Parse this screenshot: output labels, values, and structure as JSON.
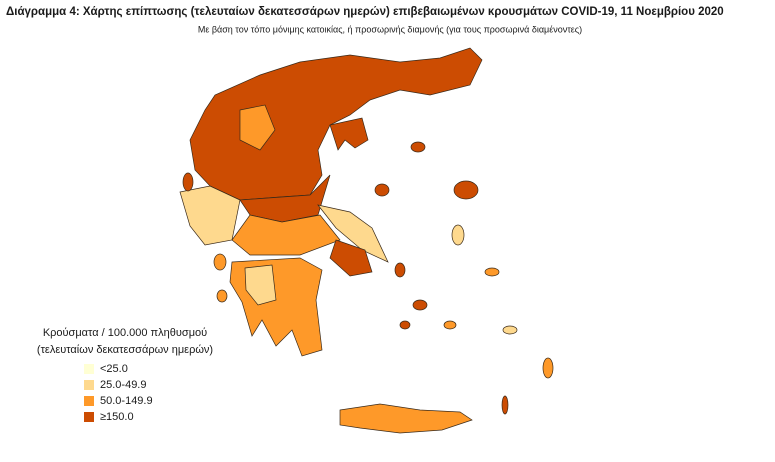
{
  "header": {
    "title": "Διάγραμμα 4: Χάρτης επίπτωσης (τελευταίων δεκατεσσάρων ημερών) επιβεβαιωμένων κρουσμάτων COVID-19, 11 Νοεμβρίου 2020",
    "subtitle": "Με βάση τον τόπο μόνιμης κατοικίας, ή προσωρινής διαμονής (για τους προσωρινά διαμένοντες)"
  },
  "legend": {
    "title": [
      "Κρούσματα / 100.000 πληθυσμού",
      "(τελευταίων δεκατεσσάρων ημερών)"
    ],
    "items": [
      {
        "label": "<25.0",
        "color": "#ffffd4"
      },
      {
        "label": "25.0-49.9",
        "color": "#fed98e"
      },
      {
        "label": "50.0-149.9",
        "color": "#fe9929"
      },
      {
        "label": "≥150.0",
        "color": "#cc4c02"
      }
    ]
  }
}
